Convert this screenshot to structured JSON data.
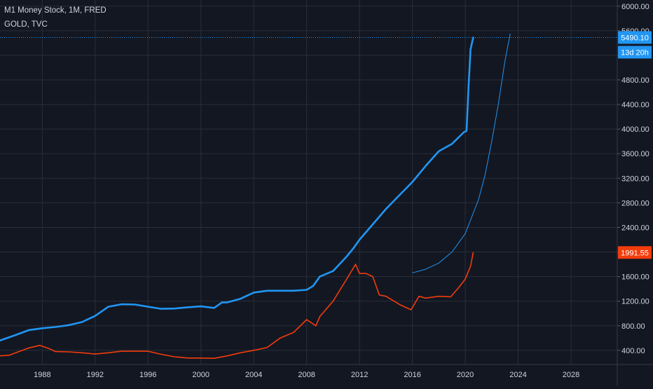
{
  "legend": {
    "series_1": "M1 Money Stock, 1M, FRED",
    "series_2": "GOLD, TVC"
  },
  "price_tags": {
    "m1_last": "5490.10",
    "countdown": "13d 20h",
    "gold_last": "1991.55"
  },
  "colors": {
    "background": "#131722",
    "grid": "#2a2e39",
    "axis_text": "#d1d4dc",
    "m1": "#2196f3",
    "gold": "#f23c0c",
    "projection": "#2196f3"
  },
  "chart_data": {
    "type": "line",
    "x_axis": {
      "ticks": [
        "1988",
        "1992",
        "1996",
        "2000",
        "2004",
        "2008",
        "2012",
        "2016",
        "2020",
        "2024",
        "2028"
      ],
      "range": [
        1984.8,
        2031.5
      ]
    },
    "y_axis": {
      "ticks": [
        "400.00",
        "800.00",
        "1200.00",
        "1600.00",
        "2000.00",
        "2400.00",
        "2800.00",
        "3200.00",
        "3600.00",
        "4000.00",
        "4400.00",
        "4800.00",
        "5200.00",
        "5600.00",
        "6000.00"
      ],
      "range": [
        170,
        6100
      ],
      "position": "right"
    },
    "grid": true,
    "series": [
      {
        "name": "M1 Money Stock",
        "x": [
          1984.8,
          1986,
          1987,
          1988,
          1989,
          1990,
          1991,
          1992,
          1993,
          1994,
          1995,
          1996,
          1997,
          1998,
          1999,
          2000,
          2001,
          2001.6,
          2002,
          2003,
          2004,
          2005,
          2006,
          2007,
          2008,
          2008.5,
          2009,
          2010,
          2011,
          2011.5,
          2012,
          2013,
          2014,
          2015,
          2016,
          2017,
          2018,
          2019,
          2019.9,
          2020.1,
          2020.25,
          2020.4,
          2020.6
        ],
        "y": [
          560,
          650,
          730,
          760,
          780,
          810,
          860,
          960,
          1110,
          1150,
          1145,
          1110,
          1075,
          1080,
          1100,
          1115,
          1090,
          1180,
          1180,
          1240,
          1340,
          1370,
          1370,
          1370,
          1385,
          1450,
          1600,
          1690,
          1920,
          2050,
          2200,
          2450,
          2700,
          2920,
          3140,
          3400,
          3640,
          3760,
          3950,
          3970,
          4700,
          5300,
          5490.1
        ]
      },
      {
        "name": "GOLD",
        "x": [
          1984.8,
          1985.5,
          1986,
          1987,
          1987.8,
          1988.5,
          1989,
          1990,
          1991,
          1992,
          1993,
          1994,
          1995,
          1996,
          1997,
          1998,
          1999,
          2000,
          2001,
          2002,
          2003,
          2004,
          2005,
          2006,
          2007,
          2008,
          2008.7,
          2009,
          2010,
          2011,
          2011.7,
          2012,
          2012.5,
          2013,
          2013.5,
          2014,
          2015,
          2015.9,
          2016.5,
          2017,
          2018,
          2018.9,
          2019.5,
          2020,
          2020.4,
          2020.6
        ],
        "y": [
          310,
          320,
          360,
          440,
          480,
          430,
          380,
          375,
          360,
          340,
          360,
          385,
          385,
          385,
          335,
          295,
          275,
          275,
          270,
          310,
          360,
          400,
          445,
          600,
          690,
          900,
          800,
          950,
          1200,
          1550,
          1800,
          1650,
          1650,
          1600,
          1300,
          1280,
          1150,
          1060,
          1280,
          1250,
          1280,
          1270,
          1420,
          1560,
          1770,
          1991.55
        ]
      },
      {
        "name": "",
        "style": "thin-curve",
        "x": [
          2016,
          2017,
          2018,
          2019,
          2020,
          2021,
          2021.5,
          2022,
          2022.5,
          2023,
          2023.4
        ],
        "y": [
          1660,
          1720,
          1820,
          2000,
          2300,
          2850,
          3250,
          3800,
          4400,
          5100,
          5550
        ]
      }
    ]
  }
}
